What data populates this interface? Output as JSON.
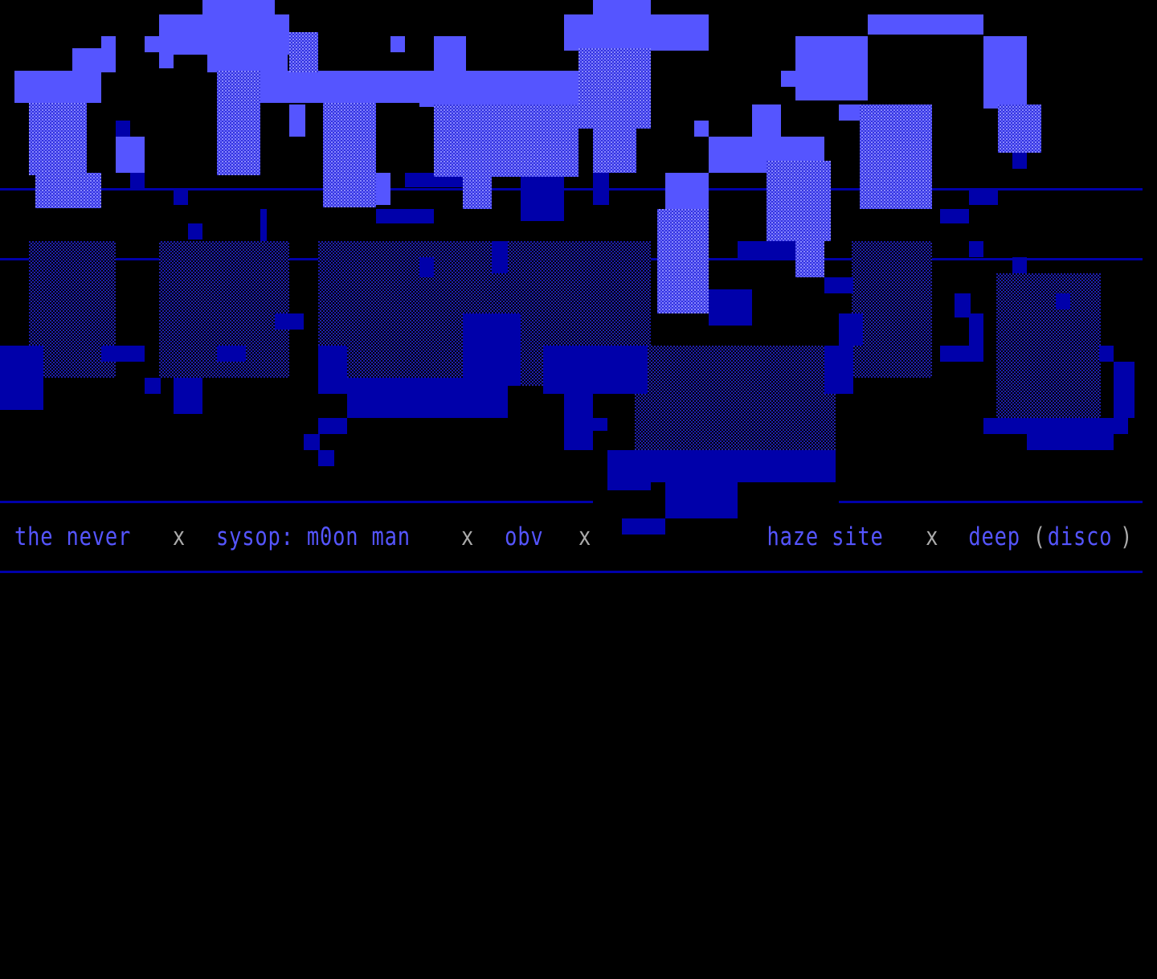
{
  "colors": {
    "background": "#000000",
    "light_blue": "#5555ff",
    "dark_blue": "#0000aa",
    "gray": "#aaaaaa"
  },
  "footer": {
    "items": [
      "the never",
      "sysop: m0on man",
      "obv",
      "haze site",
      "deep",
      "(",
      "disco",
      ")"
    ],
    "separator": "x"
  }
}
